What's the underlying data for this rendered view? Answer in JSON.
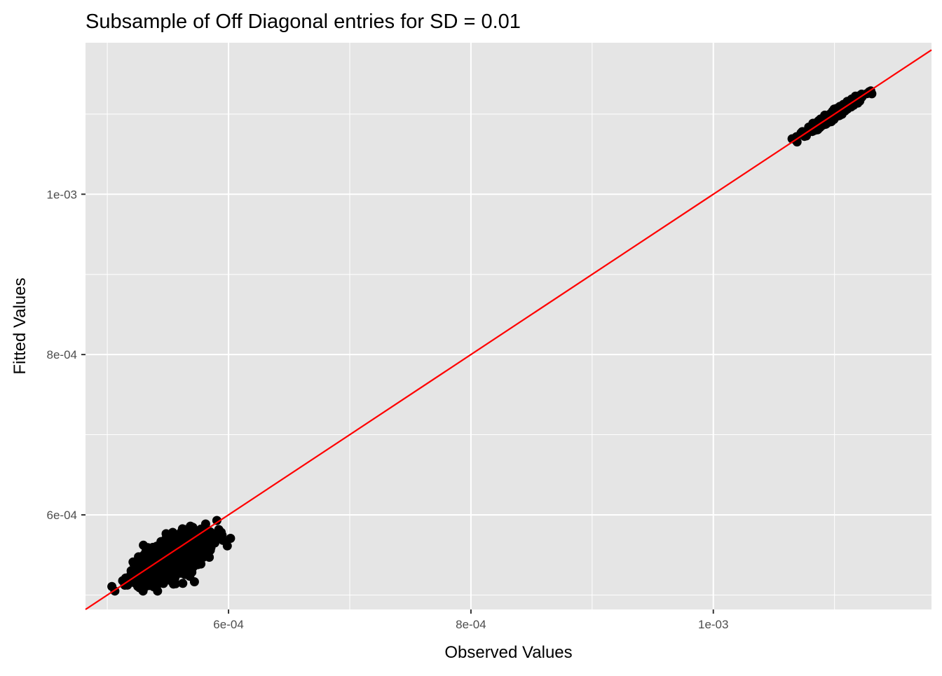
{
  "chart_data": {
    "type": "scatter",
    "title": "Subsample of Off Diagonal entries for SD = 0.01",
    "xlabel": "Observed Values",
    "ylabel": "Fitted Values",
    "xlim": [
      0.000482,
      0.00118
    ],
    "ylim": [
      0.000482,
      0.001189
    ],
    "x_ticks": [
      {
        "value": 0.0006,
        "label": "6e-04"
      },
      {
        "value": 0.0008,
        "label": "8e-04"
      },
      {
        "value": 0.001,
        "label": "1e-03"
      }
    ],
    "y_ticks": [
      {
        "value": 0.0006,
        "label": "6e-04"
      },
      {
        "value": 0.0008,
        "label": "8e-04"
      },
      {
        "value": 0.001,
        "label": "1e-03"
      }
    ],
    "minor_gridlines": [
      0.0005,
      0.0007,
      0.0009,
      0.0011
    ],
    "grid": true,
    "background_color": "#e5e5e5",
    "grid_color": "#ffffff",
    "point_color": "#000000",
    "reference_line": {
      "type": "identity",
      "slope": 1,
      "intercept": 0,
      "color": "#ff0000"
    },
    "clusters": [
      {
        "center": [
          0.000555,
          0.000548
        ],
        "x_range": [
          0.000502,
          0.000603
        ],
        "y_range": [
          0.000505,
          0.000603
        ],
        "shape": "dense elongated blob along the identity line"
      },
      {
        "center": [
          0.0011,
          0.0011
        ],
        "x_range": [
          0.001065,
          0.001143
        ],
        "y_range": [
          0.001065,
          0.001147
        ],
        "shape": "narrow band along the identity line"
      }
    ]
  }
}
